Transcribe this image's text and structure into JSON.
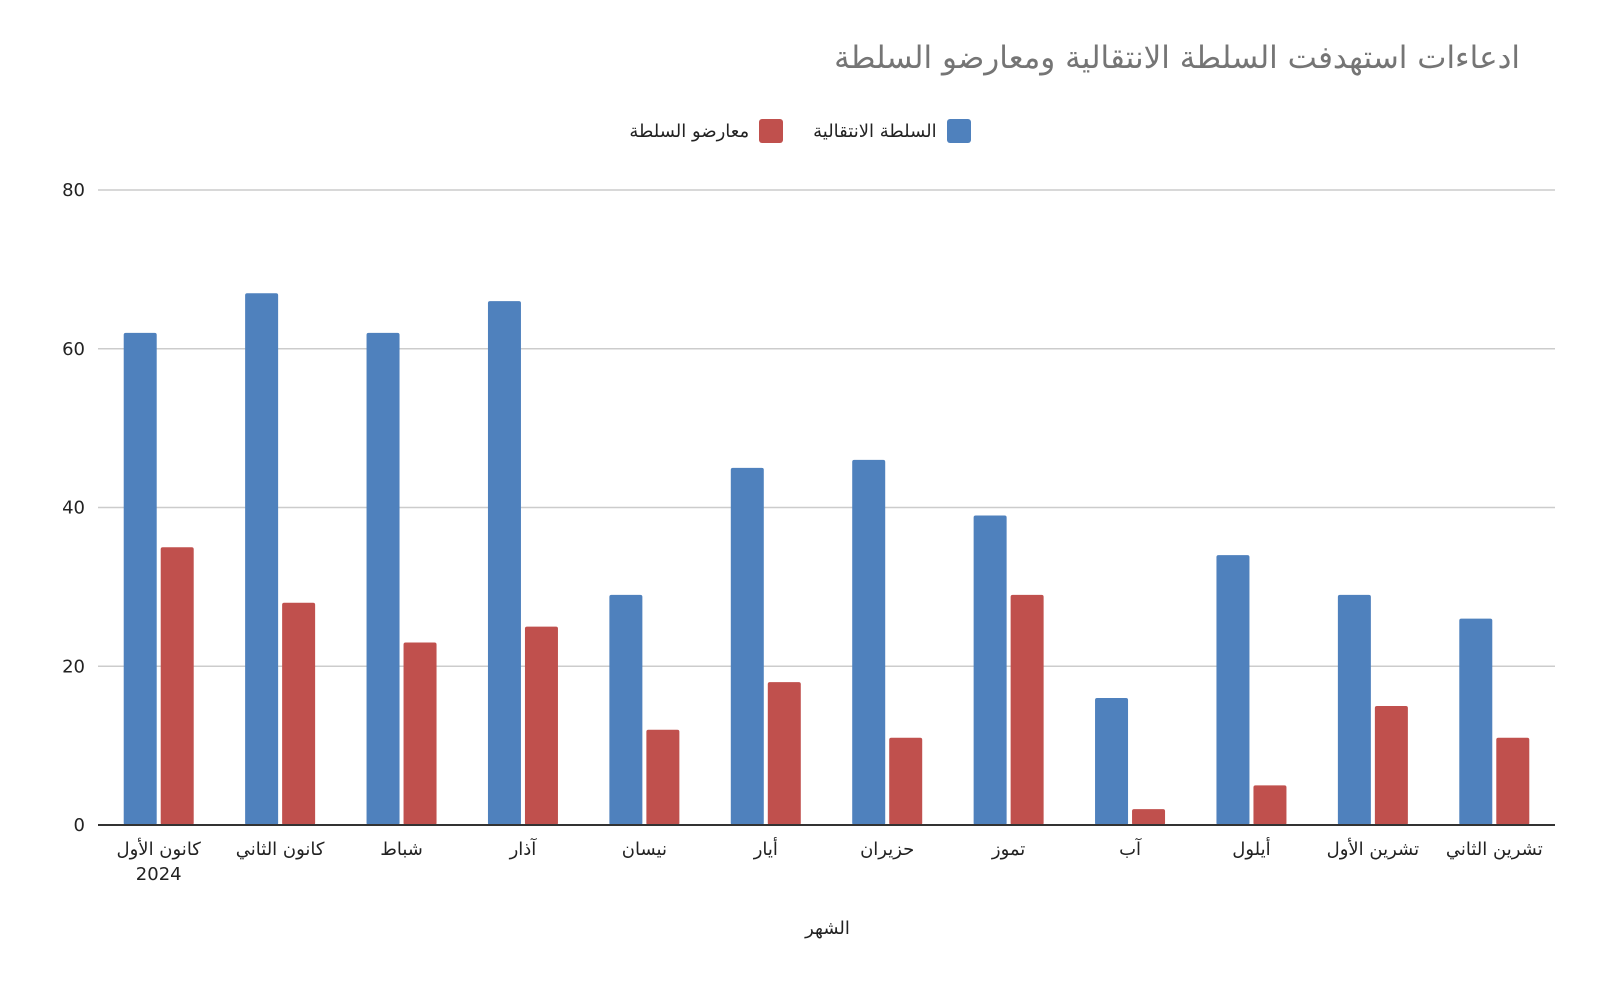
{
  "chart_data": {
    "type": "bar",
    "title": "ادعاءات استهدفت السلطة الانتقالية ومعارضو السلطة",
    "xlabel": "الشهر",
    "ylabel": "",
    "ylim": [
      0,
      80
    ],
    "yticks": [
      "0",
      "20",
      "40",
      "60",
      "80"
    ],
    "grid": true,
    "legend_position": "top-center",
    "categories": [
      [
        "كانون الأول",
        "2024"
      ],
      [
        "كانون الثاني"
      ],
      [
        "شباط"
      ],
      [
        "آذار"
      ],
      [
        "نيسان"
      ],
      [
        "أيار"
      ],
      [
        "حزيران"
      ],
      [
        "تموز"
      ],
      [
        "آب"
      ],
      [
        "أيلول"
      ],
      [
        "تشرين الأول"
      ],
      [
        "تشرين الثاني"
      ]
    ],
    "series": [
      {
        "name": "السلطة الانتقالية",
        "color": "#4f81bd",
        "values": [
          62,
          67,
          62,
          66,
          29,
          45,
          46,
          39,
          16,
          34,
          29,
          26
        ]
      },
      {
        "name": "معارضو السلطة",
        "color": "#c0504d",
        "values": [
          35,
          28,
          23,
          25,
          12,
          18,
          11,
          29,
          2,
          5,
          15,
          11
        ]
      }
    ]
  }
}
